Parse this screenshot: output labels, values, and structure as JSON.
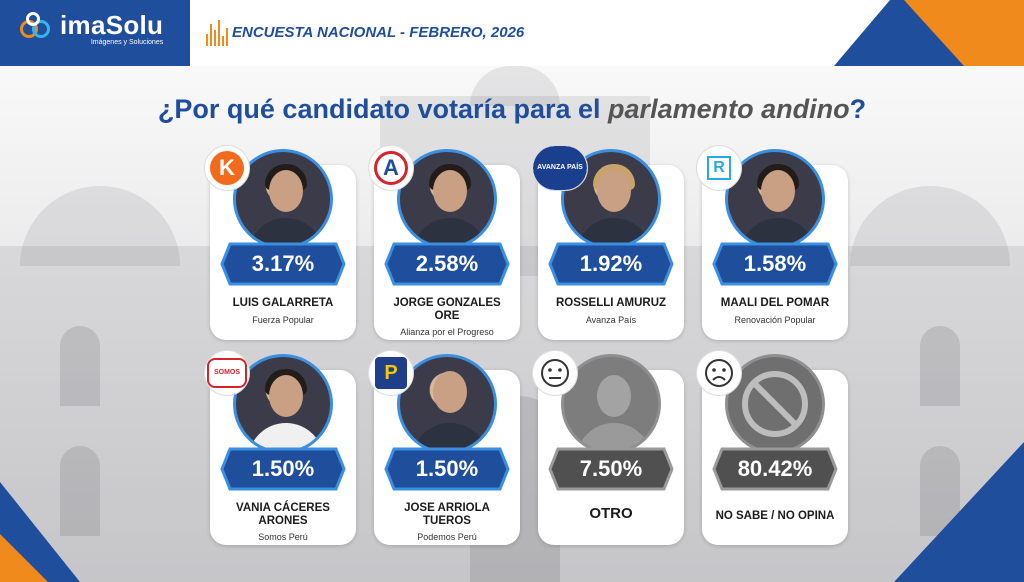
{
  "header": {
    "brand_name": "imaSolu",
    "brand_tagline": "Imágenes y Soluciones",
    "survey_title": "ENCUESTA NACIONAL - FEBRERO, 2026"
  },
  "question": {
    "prefix": "¿Por qué candidato votaría para el ",
    "emphasis": "parlamento andino",
    "suffix": "?"
  },
  "candidates": [
    {
      "name": "LUIS GALARRETA",
      "party": "Fuerza Popular",
      "percent": "3.17%",
      "logo_text": "K",
      "logo_color": "#f26a1b"
    },
    {
      "name": "JORGE GONZALES ORE",
      "party": "Alianza por el Progreso",
      "percent": "2.58%",
      "logo_text": "A",
      "logo_color": "#1f4e9c"
    },
    {
      "name": "ROSSELLI AMURUZ",
      "party": "Avanza País",
      "percent": "1.92%",
      "logo_text": "AVANZA PAÍS",
      "logo_color": "#1a3f8f"
    },
    {
      "name": "MAALI DEL POMAR",
      "party": "Renovación Popular",
      "percent": "1.58%",
      "logo_text": "R",
      "logo_color": "#2aa7e0"
    },
    {
      "name": "VANIA CÁCERES ARONES",
      "party": "Somos Perú",
      "percent": "1.50%",
      "logo_text": "SOMOS PERÚ",
      "logo_color": "#d8232a"
    },
    {
      "name": "JOSE ARRIOLA TUEROS",
      "party": "Podemos Perú",
      "percent": "1.50%",
      "logo_text": "P",
      "logo_color": "#1f3f8a"
    }
  ],
  "others": [
    {
      "label": "OTRO",
      "percent": "7.50%",
      "icon": "neutral-face-icon"
    },
    {
      "label": "NO SABE / NO OPINA",
      "percent": "80.42%",
      "icon": "sad-face-icon"
    }
  ],
  "colors": {
    "brand_blue": "#1f4e9c",
    "accent_orange": "#f08a1c",
    "candidate_banner": "#1f4e9c",
    "other_banner": "#505050"
  }
}
